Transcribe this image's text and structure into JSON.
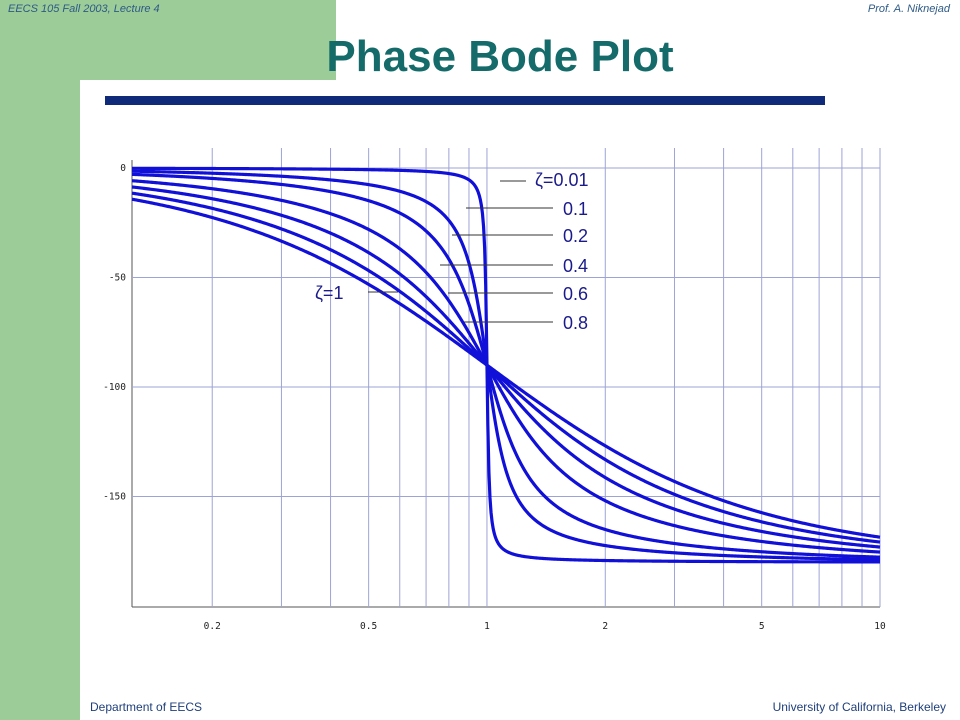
{
  "header": {
    "course": "EECS 105 Fall 2003, Lecture 4",
    "author": "Prof. A. Niknejad"
  },
  "title": "Phase Bode Plot",
  "footer": {
    "left": "Department of EECS",
    "right": "University of California, Berkeley"
  },
  "colors": {
    "curve": "#1010d8",
    "grid": "#9ea3d6",
    "title": "#156a6a",
    "rule": "#102a7a",
    "band": "#9ccc98"
  },
  "chart_data": {
    "type": "line",
    "xscale": "log",
    "xlim": [
      0.125,
      10
    ],
    "ylim": [
      -200,
      0
    ],
    "grid": true,
    "x_ticks": [
      {
        "value": 0.2,
        "label": "0.2"
      },
      {
        "value": 0.5,
        "label": "0.5"
      },
      {
        "value": 1,
        "label": "1"
      },
      {
        "value": 2,
        "label": "2"
      },
      {
        "value": 5,
        "label": "5"
      },
      {
        "value": 10,
        "label": "10"
      }
    ],
    "y_ticks": [
      {
        "value": 0,
        "label": "0"
      },
      {
        "value": -50,
        "label": "-50"
      },
      {
        "value": -100,
        "label": "-100"
      },
      {
        "value": -150,
        "label": "-150"
      }
    ],
    "x_gridlines": [
      0.2,
      0.3,
      0.4,
      0.5,
      0.6,
      0.7,
      0.8,
      0.9,
      1,
      2,
      3,
      4,
      5,
      6,
      7,
      8,
      9,
      10
    ],
    "y_gridlines": [
      0,
      -50,
      -100,
      -150
    ],
    "series": [
      {
        "zeta": 0.01,
        "label": "ζ=0.01"
      },
      {
        "zeta": 0.1,
        "label": "0.1"
      },
      {
        "zeta": 0.2,
        "label": "0.2"
      },
      {
        "zeta": 0.4,
        "label": "0.4"
      },
      {
        "zeta": 0.6,
        "label": "0.6"
      },
      {
        "zeta": 0.8,
        "label": "0.8"
      },
      {
        "zeta": 1,
        "label": "ζ=1"
      }
    ],
    "function": "phase(ω) = −atan2(2ζω, 1−ω²) in degrees"
  }
}
